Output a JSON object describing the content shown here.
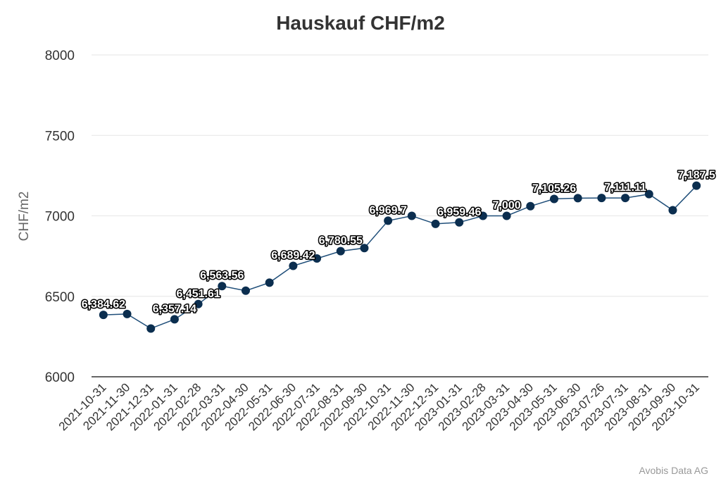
{
  "chart_data": {
    "type": "line",
    "title": "Hauskauf CHF/m2",
    "ylabel": "CHF/m2",
    "xlabel": "",
    "ylim": [
      6000,
      8000
    ],
    "yticks": [
      "6000",
      "6500",
      "7000",
      "7500",
      "8000"
    ],
    "grid": true,
    "legend": "none",
    "colors": {
      "line": "#1f4e79",
      "marker": "#0b2e4f",
      "grid": "#e6e6e6",
      "axis": "#333333"
    },
    "categories": [
      "2021-10-31",
      "2021-11-30",
      "2021-12-31",
      "2022-01-31",
      "2022-02-28",
      "2022-03-31",
      "2022-04-30",
      "2022-05-31",
      "2022-06-30",
      "2022-07-31",
      "2022-08-31",
      "2022-09-30",
      "2022-10-31",
      "2022-11-30",
      "2022-12-31",
      "2023-01-31",
      "2023-02-28",
      "2023-03-31",
      "2023-04-30",
      "2023-05-31",
      "2023-06-30",
      "2023-07-26",
      "2023-07-31",
      "2023-08-31",
      "2023-09-30",
      "2023-10-31"
    ],
    "values": [
      6384.62,
      6390,
      6300,
      6357.14,
      6451.61,
      6563.56,
      6535,
      6585,
      6689.42,
      6735,
      6780.55,
      6800,
      6969.7,
      7000,
      6950,
      6959.46,
      7000,
      7000,
      7060,
      7105.26,
      7110,
      7111.11,
      7111.11,
      7135,
      7035,
      7187.5
    ],
    "data_labels": [
      {
        "index": 0,
        "text": "6,384.62"
      },
      {
        "index": 3,
        "text": "6,357.14"
      },
      {
        "index": 4,
        "text": "6,451.61"
      },
      {
        "index": 5,
        "text": "6,563.56"
      },
      {
        "index": 8,
        "text": "6,689.42"
      },
      {
        "index": 10,
        "text": "6,780.55"
      },
      {
        "index": 12,
        "text": "6,969.7"
      },
      {
        "index": 15,
        "text": "6,959.46"
      },
      {
        "index": 17,
        "text": "7,000"
      },
      {
        "index": 19,
        "text": "7,105.26"
      },
      {
        "index": 22,
        "text": "7,111.11"
      },
      {
        "index": 25,
        "text": "7,187.5"
      }
    ]
  },
  "credit": "Avobis Data AG"
}
